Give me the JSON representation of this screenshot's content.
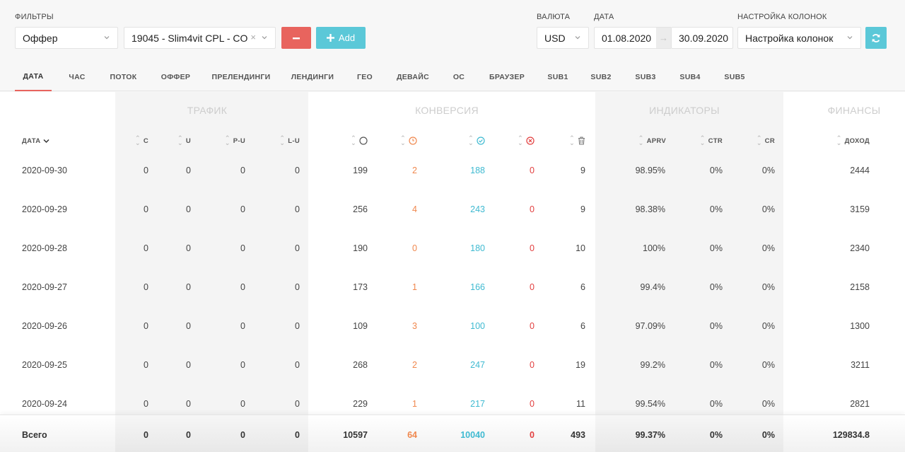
{
  "filters": {
    "label": "ФИЛЬТРЫ",
    "type_select": "Оффер",
    "offer_select": "19045 - Slim4vit CPL - CO…",
    "add_label": "Add"
  },
  "currency": {
    "label": "ВАЛЮТА",
    "value": "USD"
  },
  "date": {
    "label": "ДАТА",
    "from": "01.08.2020",
    "to": "30.09.2020"
  },
  "columns_setting": {
    "label": "НАСТРОЙКА КОЛОНОК",
    "value": "Настройка колонок"
  },
  "tabs": [
    "ДАТА",
    "ЧАС",
    "ПОТОК",
    "ОФФЕР",
    "ПРЕЛЕНДИНГИ",
    "ЛЕНДИНГИ",
    "ГЕО",
    "ДЕВАЙС",
    "ОС",
    "БРАУЗЕР",
    "SUB1",
    "SUB2",
    "SUB3",
    "SUB4",
    "SUB5"
  ],
  "active_tab": "ДАТА",
  "groups": {
    "traffic": "ТРАФИК",
    "conversion": "КОНВЕРСИЯ",
    "indicators": "ИНДИКАТОРЫ",
    "finance": "ФИНАНСЫ"
  },
  "columns": {
    "date": "ДАТА",
    "c": "C",
    "u": "U",
    "pu": "P-U",
    "lu": "L-U",
    "aprv": "APRV",
    "ctr": "CTR",
    "cr": "CR",
    "income": "ДОХОД"
  },
  "colors": {
    "accent_red": "#e8645e",
    "accent_cyan": "#5bc8d8",
    "pending": "#f0884e",
    "approved": "#3fbad1",
    "rejected": "#e23f3f"
  },
  "rows": [
    {
      "date": "2020-09-30",
      "c": "0",
      "u": "0",
      "pu": "0",
      "lu": "0",
      "total": "199",
      "hold": "2",
      "approved": "188",
      "rejected": "0",
      "trash": "9",
      "aprv": "98.95%",
      "ctr": "0%",
      "cr": "0%",
      "income": "2444"
    },
    {
      "date": "2020-09-29",
      "c": "0",
      "u": "0",
      "pu": "0",
      "lu": "0",
      "total": "256",
      "hold": "4",
      "approved": "243",
      "rejected": "0",
      "trash": "9",
      "aprv": "98.38%",
      "ctr": "0%",
      "cr": "0%",
      "income": "3159"
    },
    {
      "date": "2020-09-28",
      "c": "0",
      "u": "0",
      "pu": "0",
      "lu": "0",
      "total": "190",
      "hold": "0",
      "approved": "180",
      "rejected": "0",
      "trash": "10",
      "aprv": "100%",
      "ctr": "0%",
      "cr": "0%",
      "income": "2340"
    },
    {
      "date": "2020-09-27",
      "c": "0",
      "u": "0",
      "pu": "0",
      "lu": "0",
      "total": "173",
      "hold": "1",
      "approved": "166",
      "rejected": "0",
      "trash": "6",
      "aprv": "99.4%",
      "ctr": "0%",
      "cr": "0%",
      "income": "2158"
    },
    {
      "date": "2020-09-26",
      "c": "0",
      "u": "0",
      "pu": "0",
      "lu": "0",
      "total": "109",
      "hold": "3",
      "approved": "100",
      "rejected": "0",
      "trash": "6",
      "aprv": "97.09%",
      "ctr": "0%",
      "cr": "0%",
      "income": "1300"
    },
    {
      "date": "2020-09-25",
      "c": "0",
      "u": "0",
      "pu": "0",
      "lu": "0",
      "total": "268",
      "hold": "2",
      "approved": "247",
      "rejected": "0",
      "trash": "19",
      "aprv": "99.2%",
      "ctr": "0%",
      "cr": "0%",
      "income": "3211"
    },
    {
      "date": "2020-09-24",
      "c": "0",
      "u": "0",
      "pu": "0",
      "lu": "0",
      "total": "229",
      "hold": "1",
      "approved": "217",
      "rejected": "0",
      "trash": "11",
      "aprv": "99.54%",
      "ctr": "0%",
      "cr": "0%",
      "income": "2821"
    }
  ],
  "totals": {
    "label": "Всего",
    "c": "0",
    "u": "0",
    "pu": "0",
    "lu": "0",
    "total": "10597",
    "hold": "64",
    "approved": "10040",
    "rejected": "0",
    "trash": "493",
    "aprv": "99.37%",
    "ctr": "0%",
    "cr": "0%",
    "income": "129834.8"
  }
}
